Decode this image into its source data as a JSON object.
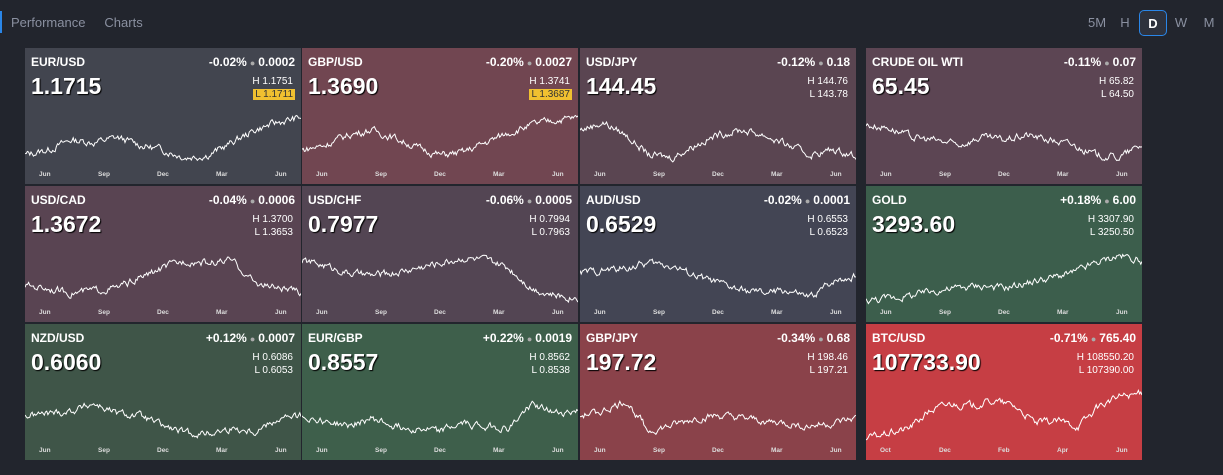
{
  "nav": {
    "tabs": [
      "Performance",
      "Charts"
    ]
  },
  "timeframes": {
    "items": [
      "5M",
      "H",
      "D",
      "W",
      "M"
    ],
    "active": "D"
  },
  "tiles": [
    {
      "symbol": "EUR/USD",
      "change_pct": "-0.02%",
      "change": "0.0002",
      "price": "1.1715",
      "high": "H 1.1751",
      "low": "L  1.1711",
      "low_highlight": true,
      "color": "#42454f",
      "months": [
        "Jun",
        "Sep",
        "Dec",
        "Mar",
        "Jun"
      ],
      "trend": [
        0.2,
        0.3,
        0.5,
        0.45,
        0.55,
        0.4,
        0.3,
        0.15,
        0.2,
        0.45,
        0.7,
        0.85,
        0.95
      ]
    },
    {
      "symbol": "GBP/USD",
      "change_pct": "-0.20%",
      "change": "0.0027",
      "price": "1.3690",
      "high": "H 1.3741",
      "low": "L  1.3687",
      "low_highlight": true,
      "color": "#714651",
      "months": [
        "Jun",
        "Sep",
        "Dec",
        "Mar",
        "Jun"
      ],
      "trend": [
        0.3,
        0.4,
        0.6,
        0.7,
        0.55,
        0.35,
        0.2,
        0.25,
        0.45,
        0.65,
        0.8,
        0.9,
        0.95
      ]
    },
    {
      "symbol": "USD/JPY",
      "change_pct": "-0.12%",
      "change": "0.18",
      "price": "144.45",
      "high": "H 144.76",
      "low": "L  143.78",
      "low_highlight": false,
      "color": "#5a4551",
      "months": [
        "Jun",
        "Sep",
        "Dec",
        "Mar",
        "Jun"
      ],
      "trend": [
        0.7,
        0.85,
        0.6,
        0.2,
        0.15,
        0.4,
        0.6,
        0.7,
        0.6,
        0.4,
        0.2,
        0.3,
        0.2
      ]
    },
    {
      "symbol": "CRUDE OIL WTI",
      "change_pct": "-0.11%",
      "change": "0.07",
      "price": "65.45",
      "high": "H 65.82",
      "low": "L  64.50",
      "low_highlight": false,
      "color": "#5c4553",
      "months": [
        "Jun",
        "Sep",
        "Dec",
        "Mar",
        "Jun"
      ],
      "trend": [
        0.8,
        0.75,
        0.55,
        0.5,
        0.4,
        0.55,
        0.5,
        0.6,
        0.5,
        0.4,
        0.2,
        0.15,
        0.4
      ]
    },
    {
      "symbol": "USD/CAD",
      "change_pct": "-0.04%",
      "change": "0.0006",
      "price": "1.3672",
      "high": "H 1.3700",
      "low": "L  1.3653",
      "low_highlight": false,
      "color": "#594452",
      "months": [
        "Jun",
        "Sep",
        "Dec",
        "Mar",
        "Jun"
      ],
      "trend": [
        0.35,
        0.3,
        0.2,
        0.25,
        0.3,
        0.5,
        0.7,
        0.85,
        0.8,
        0.85,
        0.4,
        0.3,
        0.2
      ]
    },
    {
      "symbol": "USD/CHF",
      "change_pct": "-0.06%",
      "change": "0.0005",
      "price": "0.7977",
      "high": "H 0.7994",
      "low": "L  0.7963",
      "low_highlight": false,
      "color": "#534553",
      "months": [
        "Jun",
        "Sep",
        "Dec",
        "Mar",
        "Jun"
      ],
      "trend": [
        0.85,
        0.75,
        0.6,
        0.55,
        0.6,
        0.7,
        0.8,
        0.9,
        0.85,
        0.7,
        0.3,
        0.15,
        0.1
      ]
    },
    {
      "symbol": "AUD/USD",
      "change_pct": "-0.02%",
      "change": "0.0001",
      "price": "0.6529",
      "high": "H 0.6553",
      "low": "L  0.6523",
      "low_highlight": false,
      "color": "#434554",
      "months": [
        "Jun",
        "Sep",
        "Dec",
        "Mar",
        "Jun"
      ],
      "trend": [
        0.6,
        0.65,
        0.7,
        0.8,
        0.75,
        0.55,
        0.4,
        0.25,
        0.2,
        0.25,
        0.1,
        0.45,
        0.55
      ]
    },
    {
      "symbol": "GOLD",
      "change_pct": "+0.18%",
      "change": "6.00",
      "price": "3293.60",
      "high": "H 3307.90",
      "low": "L  3250.50",
      "low_highlight": false,
      "color": "#3c5e4c",
      "months": [
        "Jun",
        "Sep",
        "Dec",
        "Mar",
        "Jun"
      ],
      "trend": [
        0.05,
        0.1,
        0.15,
        0.25,
        0.3,
        0.35,
        0.3,
        0.4,
        0.5,
        0.6,
        0.8,
        0.95,
        0.85
      ]
    },
    {
      "symbol": "NZD/USD",
      "change_pct": "+0.12%",
      "change": "0.0007",
      "price": "0.6060",
      "high": "H 0.6086",
      "low": "L  0.6053",
      "low_highlight": false,
      "color": "#3f5548",
      "months": [
        "Jun",
        "Sep",
        "Dec",
        "Mar",
        "Jun"
      ],
      "trend": [
        0.5,
        0.55,
        0.6,
        0.75,
        0.55,
        0.5,
        0.3,
        0.15,
        0.15,
        0.25,
        0.2,
        0.45,
        0.5
      ]
    },
    {
      "symbol": "EUR/GBP",
      "change_pct": "+0.22%",
      "change": "0.0019",
      "price": "0.8557",
      "high": "H 0.8562",
      "low": "L  0.8538",
      "low_highlight": false,
      "color": "#3e5f4b",
      "months": [
        "Jun",
        "Sep",
        "Dec",
        "Mar",
        "Jun"
      ],
      "trend": [
        0.5,
        0.4,
        0.3,
        0.45,
        0.3,
        0.25,
        0.2,
        0.35,
        0.3,
        0.25,
        0.75,
        0.55,
        0.6
      ]
    },
    {
      "symbol": "GBP/JPY",
      "change_pct": "-0.34%",
      "change": "0.68",
      "price": "197.72",
      "high": "H 198.46",
      "low": "L  197.21",
      "low_highlight": false,
      "color": "#8a424a",
      "months": [
        "Jun",
        "Sep",
        "Dec",
        "Mar",
        "Jun"
      ],
      "trend": [
        0.5,
        0.6,
        0.8,
        0.2,
        0.3,
        0.45,
        0.5,
        0.45,
        0.4,
        0.35,
        0.3,
        0.35,
        0.45
      ]
    },
    {
      "symbol": "BTC/USD",
      "change_pct": "-0.71%",
      "change": "765.40",
      "price": "107733.90",
      "high": "H 108550.20",
      "low": "L  107390.00",
      "low_highlight": false,
      "color": "#c63e44",
      "months": [
        "Oct",
        "Dec",
        "Feb",
        "Apr",
        "Jun"
      ],
      "trend": [
        0.05,
        0.15,
        0.25,
        0.6,
        0.75,
        0.7,
        0.8,
        0.7,
        0.35,
        0.4,
        0.3,
        0.7,
        0.9,
        0.95
      ]
    }
  ]
}
